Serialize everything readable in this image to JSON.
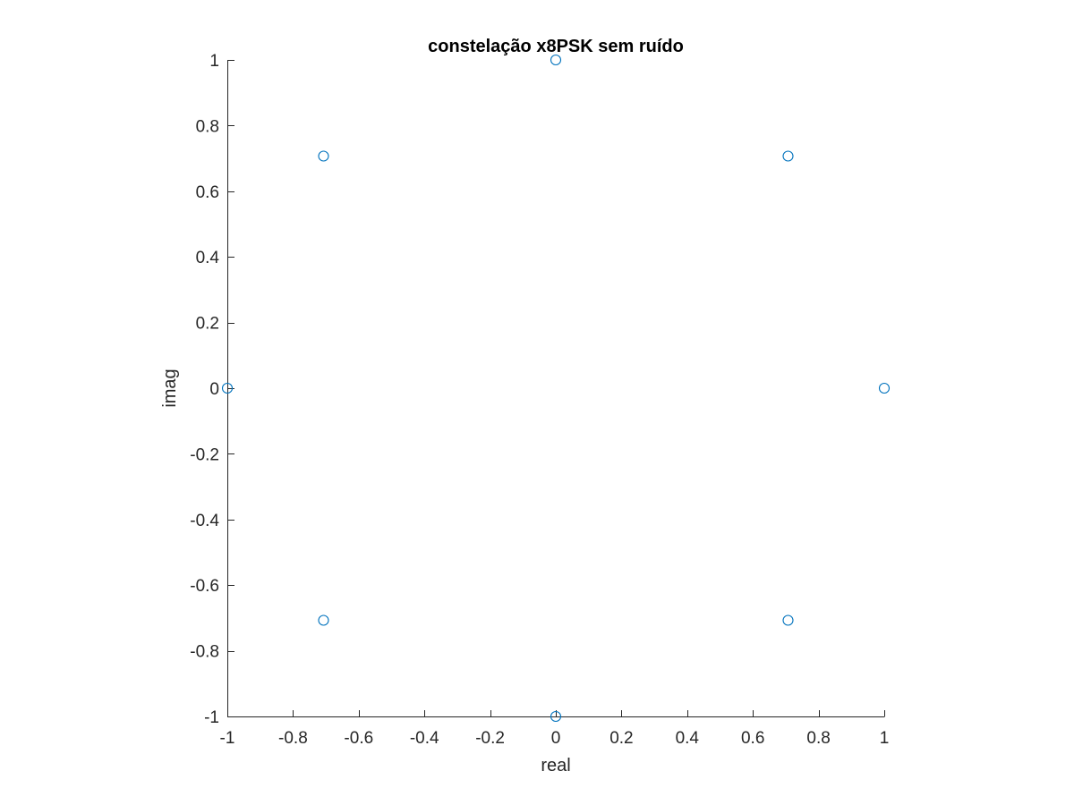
{
  "chart_data": {
    "type": "scatter",
    "title": "constelação x8PSK sem ruído",
    "xlabel": "real",
    "ylabel": "imag",
    "xlim": [
      -1,
      1
    ],
    "ylim": [
      -1,
      1
    ],
    "xticks": [
      -1,
      -0.8,
      -0.6,
      -0.4,
      -0.2,
      0,
      0.2,
      0.4,
      0.6,
      0.8,
      1
    ],
    "yticks": [
      -1,
      -0.8,
      -0.6,
      -0.4,
      -0.2,
      0,
      0.2,
      0.4,
      0.6,
      0.8,
      1
    ],
    "xtick_labels": [
      "-1",
      "-0.8",
      "-0.6",
      "-0.4",
      "-0.2",
      "0",
      "0.2",
      "0.4",
      "0.6",
      "0.8",
      "1"
    ],
    "ytick_labels": [
      "-1",
      "-0.8",
      "-0.6",
      "-0.4",
      "-0.2",
      "0",
      "0.2",
      "0.4",
      "0.6",
      "0.8",
      "1"
    ],
    "grid": false,
    "marker": "circle-open",
    "color": "#0072BD",
    "series": [
      {
        "x": [
          1,
          0.7071,
          0,
          -0.7071,
          -1,
          -0.7071,
          0,
          0.7071
        ],
        "y": [
          0,
          0.7071,
          1,
          0.7071,
          0,
          -0.7071,
          -1,
          -0.7071
        ]
      }
    ]
  }
}
